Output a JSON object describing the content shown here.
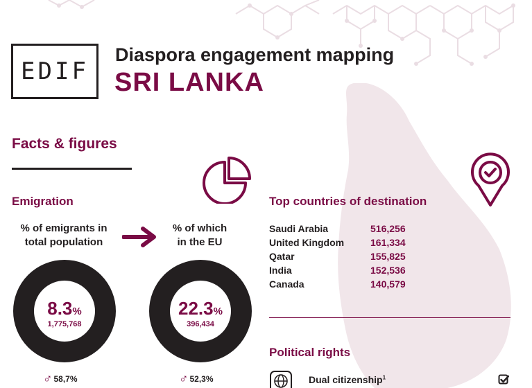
{
  "header": {
    "logo_text": "EDIF",
    "title": "Diaspora engagement mapping",
    "country": "SRI LANKA"
  },
  "facts_heading": "Facts & figures",
  "emigration": {
    "heading": "Emigration",
    "total": {
      "label_line1": "% of emigrants in",
      "label_line2": "total population",
      "value": "8.3",
      "unit": "%",
      "count": "1,775,768",
      "fraction": 0.083,
      "male_share": "58,7%"
    },
    "eu": {
      "label_line1": "% of which",
      "label_line2": "in the EU",
      "value": "22.3",
      "unit": "%",
      "count": "396,434",
      "fraction": 0.223,
      "male_share": "52,3%"
    }
  },
  "destinations": {
    "heading": "Top countries of destination",
    "rows": [
      {
        "country": "Saudi Arabia",
        "value": "516,256"
      },
      {
        "country": "United Kingdom",
        "value": "161,334"
      },
      {
        "country": "Qatar",
        "value": "155,825"
      },
      {
        "country": "India",
        "value": "152,536"
      },
      {
        "country": "Canada",
        "value": "140,579"
      }
    ]
  },
  "political_rights": {
    "heading": "Political rights",
    "items": [
      {
        "label": "Dual citizenship",
        "note": "1",
        "icon": "globe-icon",
        "status_icon": "checkbox-checked-icon"
      }
    ]
  },
  "icons": {
    "pie": "pie-chart-icon",
    "pin": "location-pin-check-icon",
    "arrow": "arrow-right-icon",
    "male": "male-symbol-icon"
  },
  "colors": {
    "brand": "#7a0b45",
    "dark": "#231f20",
    "map_fill": "#f1e6ea",
    "network": "#eadde3"
  }
}
